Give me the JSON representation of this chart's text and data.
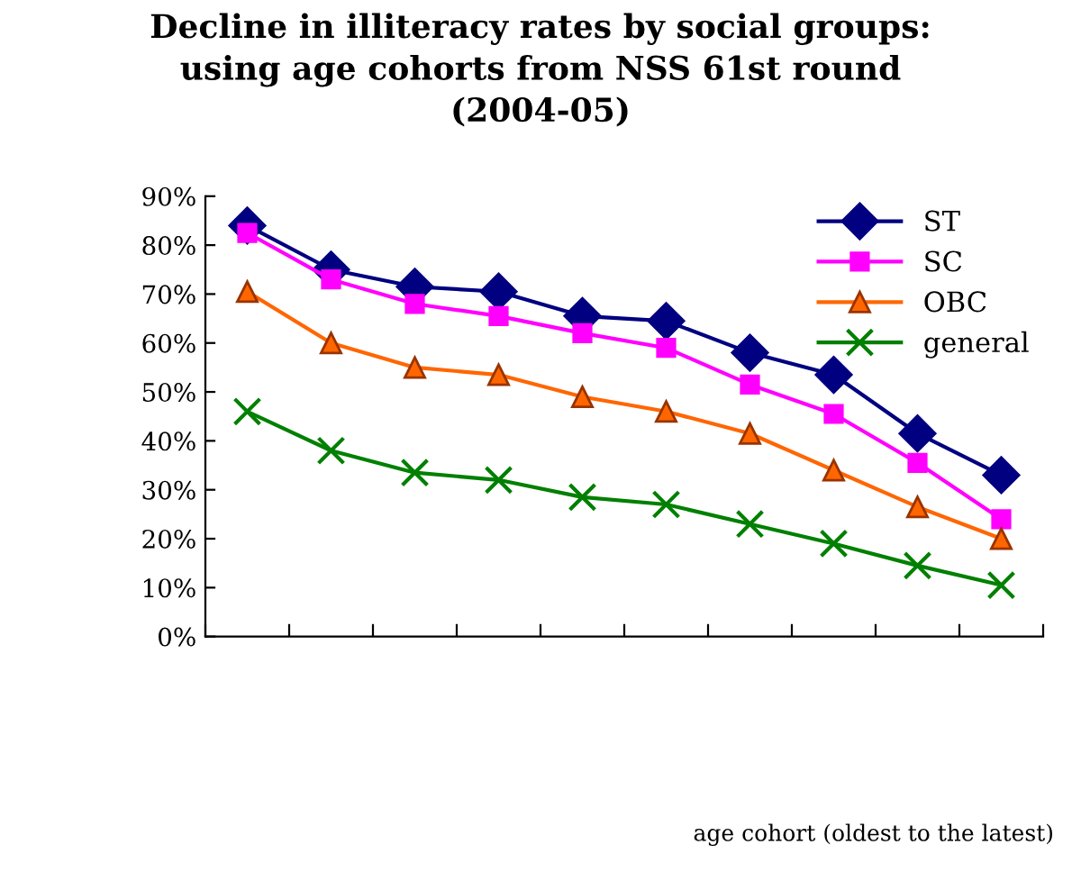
{
  "chart_data": {
    "type": "line",
    "title": "Decline in illiteracy rates by social groups:\nusing age cohorts from NSS 61st round\n(2004-05)",
    "annotations": [
      "age cohort (oldest to the latest)"
    ],
    "categories": [
      null,
      null,
      null,
      null,
      null,
      null,
      null,
      null,
      null,
      null
    ],
    "series": [
      {
        "name": "ST",
        "color": "#000080",
        "marker": "diamond",
        "values": [
          84,
          75,
          71.5,
          70.5,
          65.5,
          64.5,
          58,
          53.5,
          41.5,
          33
        ]
      },
      {
        "name": "SC",
        "color": "#ff00ff",
        "marker": "square",
        "values": [
          82.5,
          73,
          68,
          65.5,
          62,
          59,
          51.5,
          45.5,
          35.5,
          24
        ]
      },
      {
        "name": "OBC",
        "color": "#ff6600",
        "marker": "triangle",
        "values": [
          70.5,
          60,
          55,
          53.5,
          49,
          46,
          41.5,
          34,
          26.5,
          20
        ]
      },
      {
        "name": "general",
        "color": "#008000",
        "marker": "cross",
        "values": [
          46,
          38,
          33.5,
          32,
          28.5,
          27,
          23,
          19,
          14.5,
          10.5
        ]
      }
    ],
    "ylim": [
      0,
      90
    ],
    "yticks": [
      {
        "value": 0,
        "label": "0%"
      },
      {
        "value": 10,
        "label": "10%"
      },
      {
        "value": 20,
        "label": "20%"
      },
      {
        "value": 30,
        "label": "30%"
      },
      {
        "value": 40,
        "label": "40%"
      },
      {
        "value": 50,
        "label": "50%"
      },
      {
        "value": 60,
        "label": "60%"
      },
      {
        "value": 70,
        "label": "70%"
      },
      {
        "value": 80,
        "label": "80%"
      },
      {
        "value": 90,
        "label": "90%"
      }
    ],
    "grid": false,
    "legend": "top right",
    "line_style": "solid"
  }
}
